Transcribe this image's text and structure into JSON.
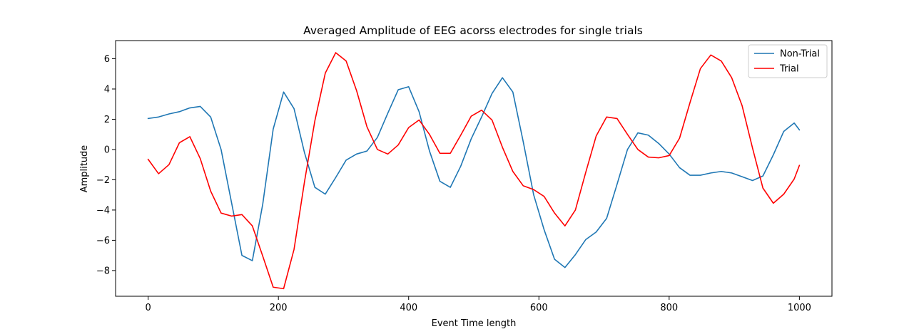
{
  "chart_data": {
    "type": "line",
    "title": "Averaged Amplitude of EEG acorss electrodes for single trials",
    "xlabel": "Event Time length",
    "ylabel": "Amplitude",
    "xlim": [
      -50,
      1050
    ],
    "ylim": [
      -9.7,
      7.2
    ],
    "xticks": [
      0,
      200,
      400,
      600,
      800,
      1000
    ],
    "yticks": [
      -8,
      -6,
      -4,
      -2,
      0,
      2,
      4,
      6
    ],
    "grid": false,
    "legend_position": "top-right",
    "x": [
      0,
      16,
      32,
      48,
      64,
      80,
      96,
      112,
      128,
      144,
      160,
      176,
      192,
      208,
      224,
      240,
      256,
      272,
      288,
      304,
      320,
      336,
      352,
      368,
      384,
      400,
      416,
      432,
      448,
      464,
      480,
      496,
      512,
      528,
      544,
      560,
      576,
      592,
      608,
      624,
      640,
      656,
      672,
      688,
      704,
      720,
      736,
      752,
      768,
      784,
      800,
      816,
      832,
      848,
      864,
      880,
      896,
      912,
      928,
      944,
      960,
      976,
      992,
      1000
    ],
    "series": [
      {
        "name": "Non-Trial",
        "color": "#1f77b4",
        "values": [
          2.05,
          2.15,
          2.35,
          2.5,
          2.75,
          2.85,
          2.15,
          0.0,
          -3.5,
          -7.0,
          -7.35,
          -3.6,
          1.35,
          3.8,
          2.7,
          -0.2,
          -2.5,
          -2.95,
          -1.85,
          -0.7,
          -0.3,
          -0.1,
          0.8,
          2.4,
          3.95,
          4.15,
          2.5,
          -0.1,
          -2.1,
          -2.5,
          -1.1,
          0.7,
          2.15,
          3.7,
          4.75,
          3.8,
          0.5,
          -3.0,
          -5.3,
          -7.25,
          -7.8,
          -6.95,
          -5.95,
          -5.45,
          -4.55,
          -2.3,
          0.0,
          1.1,
          0.95,
          0.4,
          -0.3,
          -1.2,
          -1.7,
          -1.7,
          -1.55,
          -1.45,
          -1.55,
          -1.8,
          -2.05,
          -1.75,
          -0.35,
          1.2,
          1.75,
          1.3
        ],
        "draw_as": "line"
      },
      {
        "name": "Trial",
        "color": "#ff0000",
        "values": [
          -0.65,
          -1.6,
          -1.0,
          0.45,
          0.85,
          -0.6,
          -2.75,
          -4.2,
          -4.4,
          -4.3,
          -5.05,
          -7.05,
          -9.1,
          -9.2,
          -6.6,
          -2.15,
          1.9,
          5.05,
          6.4,
          5.85,
          3.9,
          1.5,
          0.0,
          -0.3,
          0.3,
          1.45,
          1.95,
          1.0,
          -0.25,
          -0.25,
          0.95,
          2.2,
          2.6,
          1.95,
          0.15,
          -1.45,
          -2.4,
          -2.65,
          -3.1,
          -4.2,
          -5.05,
          -4.0,
          -1.5,
          0.9,
          2.15,
          2.05,
          1.0,
          0.0,
          -0.5,
          -0.55,
          -0.4,
          0.75,
          3.1,
          5.35,
          6.25,
          5.85,
          4.75,
          2.9,
          0.1,
          -2.55,
          -3.55,
          -2.95,
          -1.95,
          -1.05
        ],
        "draw_as": "line"
      }
    ]
  }
}
